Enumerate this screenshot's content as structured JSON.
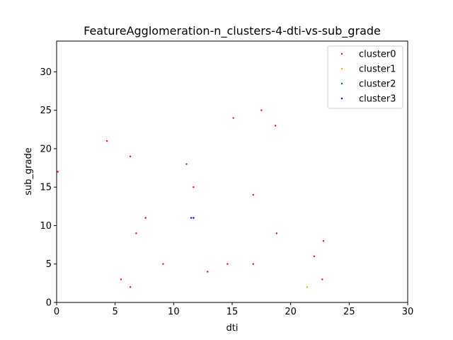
{
  "chart_data": {
    "type": "scatter",
    "title": "FeatureAgglomeration-n_clusters-4-dti-vs-sub_grade",
    "xlabel": "dti",
    "ylabel": "sub_grade",
    "xlim": [
      0,
      30
    ],
    "ylim": [
      0,
      34
    ],
    "xticks": [
      0,
      5,
      10,
      15,
      20,
      25,
      30
    ],
    "yticks": [
      0,
      5,
      10,
      15,
      20,
      25,
      30
    ],
    "grid": false,
    "legend_position": "top-right",
    "series": [
      {
        "name": "cluster0",
        "color": "#ff0000",
        "points": [
          [
            0.1,
            17
          ],
          [
            4.3,
            21
          ],
          [
            6.3,
            19
          ],
          [
            11.7,
            15
          ],
          [
            15.1,
            24
          ],
          [
            17.5,
            25
          ],
          [
            18.7,
            23
          ],
          [
            16.8,
            14
          ],
          [
            7.6,
            11
          ],
          [
            6.8,
            9
          ],
          [
            18.8,
            9
          ],
          [
            22.8,
            8
          ],
          [
            22.0,
            6
          ],
          [
            9.1,
            5
          ],
          [
            12.9,
            4
          ],
          [
            14.6,
            5
          ],
          [
            16.8,
            5
          ],
          [
            5.5,
            3
          ],
          [
            6.3,
            2
          ],
          [
            22.7,
            3
          ]
        ]
      },
      {
        "name": "cluster1",
        "color": "#ffa500",
        "points": [
          [
            21.4,
            2
          ]
        ]
      },
      {
        "name": "cluster2",
        "color": "#008000",
        "points": [
          [
            11.1,
            18
          ]
        ]
      },
      {
        "name": "cluster3",
        "color": "#0000ff",
        "points": [
          [
            11.5,
            11
          ],
          [
            11.7,
            11
          ]
        ]
      }
    ]
  }
}
